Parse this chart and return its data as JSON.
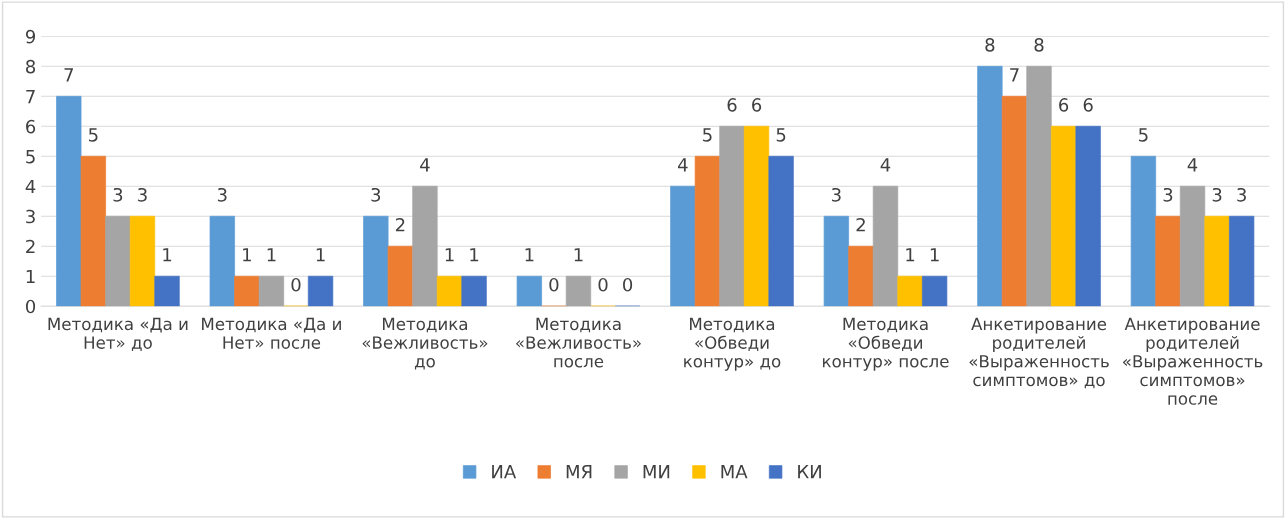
{
  "chart_data": {
    "type": "bar",
    "categories": [
      "Методика «Да и\nНет» до",
      "Методика «Да и\nНет» после",
      "Методика\n«Вежливость»\nдо",
      "Методика\n«Вежливость»\nпосле",
      "Методика\n«Обведи\nконтур» до",
      "Методика\n«Обведи\nконтур» после",
      "Анкетирование\nродителей\n«Выраженность\nсимптомов» до",
      "Анкетирование\nродителей\n«Выраженность\nсимптомов»\nпосле"
    ],
    "series": [
      {
        "name": "ИА",
        "color": "#5b9bd5",
        "values": [
          7,
          3,
          3,
          1,
          4,
          3,
          8,
          5
        ]
      },
      {
        "name": "МЯ",
        "color": "#ed7d31",
        "values": [
          5,
          1,
          2,
          0,
          5,
          2,
          7,
          3
        ]
      },
      {
        "name": "МИ",
        "color": "#a5a5a5",
        "values": [
          3,
          1,
          4,
          1,
          6,
          4,
          8,
          4
        ]
      },
      {
        "name": "МА",
        "color": "#ffc000",
        "values": [
          3,
          0,
          1,
          0,
          6,
          1,
          6,
          3
        ]
      },
      {
        "name": "КИ",
        "color": "#4472c4",
        "values": [
          1,
          1,
          1,
          0,
          5,
          1,
          6,
          3
        ]
      }
    ],
    "ylim": [
      0,
      9
    ],
    "yticks": [
      0,
      1,
      2,
      3,
      4,
      5,
      6,
      7,
      8,
      9
    ],
    "grid": "y",
    "legend": "bottom",
    "data_labels": true
  }
}
